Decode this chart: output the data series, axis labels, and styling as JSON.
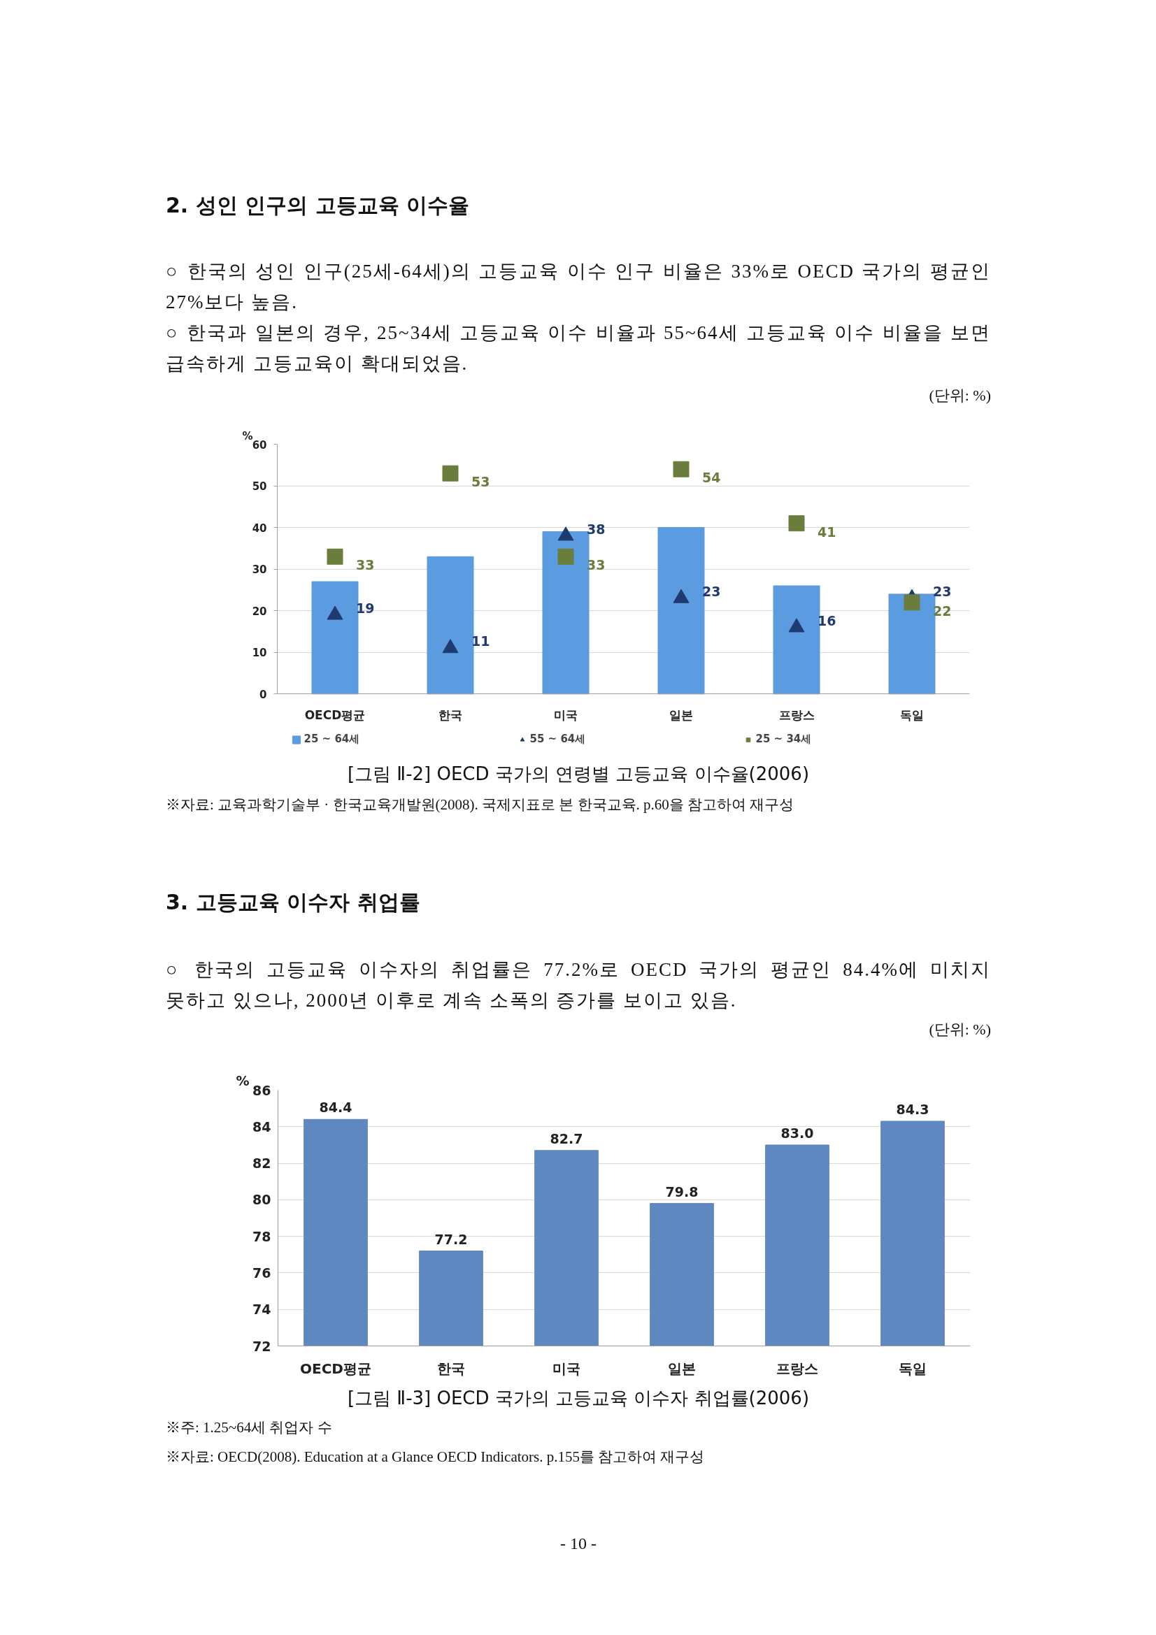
{
  "chart_data": [
    {
      "type": "bar",
      "title": "2. 성인 인구의 고등교육 이수율",
      "subtitle": "○ 한국의 성인 인구(25세-64세)의 고등교육 이수 인구 비율은 33%로 OECD 국가의 평균인 27%보다 높음.\n○ 한국과 일본의 경우, 25~34세 고등교육 이수 비율과 55~64세 고등교육 이수 비율을 보면 급속하게 고등교육이 확대되었음.",
      "ylabel": "%",
      "categories": [
        "OECD평균",
        "한국",
        "미국",
        "일본",
        "프랑스",
        "독일"
      ],
      "series": [
        {
          "name": "25 ~ 64세",
          "type": "bar",
          "color": "#5b9be0",
          "values": [
            27,
            33,
            39,
            40,
            26,
            24
          ]
        },
        {
          "name": "55 ~ 64세",
          "type": "scatter",
          "marker": "triangle",
          "color": "#1f3a6e",
          "values": [
            19,
            11,
            38,
            23,
            16,
            23
          ],
          "value_labels": [
            "19",
            "11",
            "38",
            "23",
            "16",
            "23"
          ]
        },
        {
          "name": "25 ~ 34세",
          "type": "scatter",
          "marker": "square",
          "color": "#6b7d3c",
          "values": [
            33,
            53,
            33,
            54,
            41,
            22
          ],
          "value_labels": [
            "33",
            "53",
            "33",
            "54",
            "41",
            "22"
          ]
        }
      ],
      "ylim": [
        0,
        60
      ],
      "yticks": [
        0,
        10,
        20,
        30,
        40,
        50,
        60
      ],
      "grid": "y",
      "legend": "bottom",
      "annotations": [
        "(단위: %)",
        "[그림 Ⅱ-2] OECD 국가의 연령별 고등교육 이수율(2006)",
        "※자료: 교육과학기술부 · 한국교육개발원(2008). 국제지표로 본 한국교육. p.60을 참고하여 재구성"
      ]
    },
    {
      "type": "bar",
      "title": "3. 고등교육 이수자 취업률",
      "subtitle": "○ 한국의 고등교육 이수자의 취업률은 77.2%로 OECD 국가의 평균인 84.4%에 미치지 못하고 있으나, 2000년 이후로 계속 소폭의 증가를 보이고 있음.",
      "ylabel": "%",
      "categories": [
        "OECD평균",
        "한국",
        "미국",
        "일본",
        "프랑스",
        "독일"
      ],
      "values": [
        84.4,
        77.2,
        82.7,
        79.8,
        83.0,
        84.3
      ],
      "value_labels": [
        "84.4",
        "77.2",
        "82.7",
        "79.8",
        "83.0",
        "84.3"
      ],
      "color": "#5f87c0",
      "ylim": [
        72,
        86
      ],
      "yticks": [
        72,
        74,
        76,
        78,
        80,
        82,
        84,
        86
      ],
      "grid": "y",
      "annotations": [
        "(단위: %)",
        "[그림 Ⅱ-3] OECD 국가의 고등교육 이수자 취업률(2006)",
        "※주: 1.25~64세 취업자 수",
        "※자료: OECD(2008). Education at a Glance OECD Indicators. p.155를 참고하여 재구성",
        "- 10 -"
      ]
    }
  ]
}
